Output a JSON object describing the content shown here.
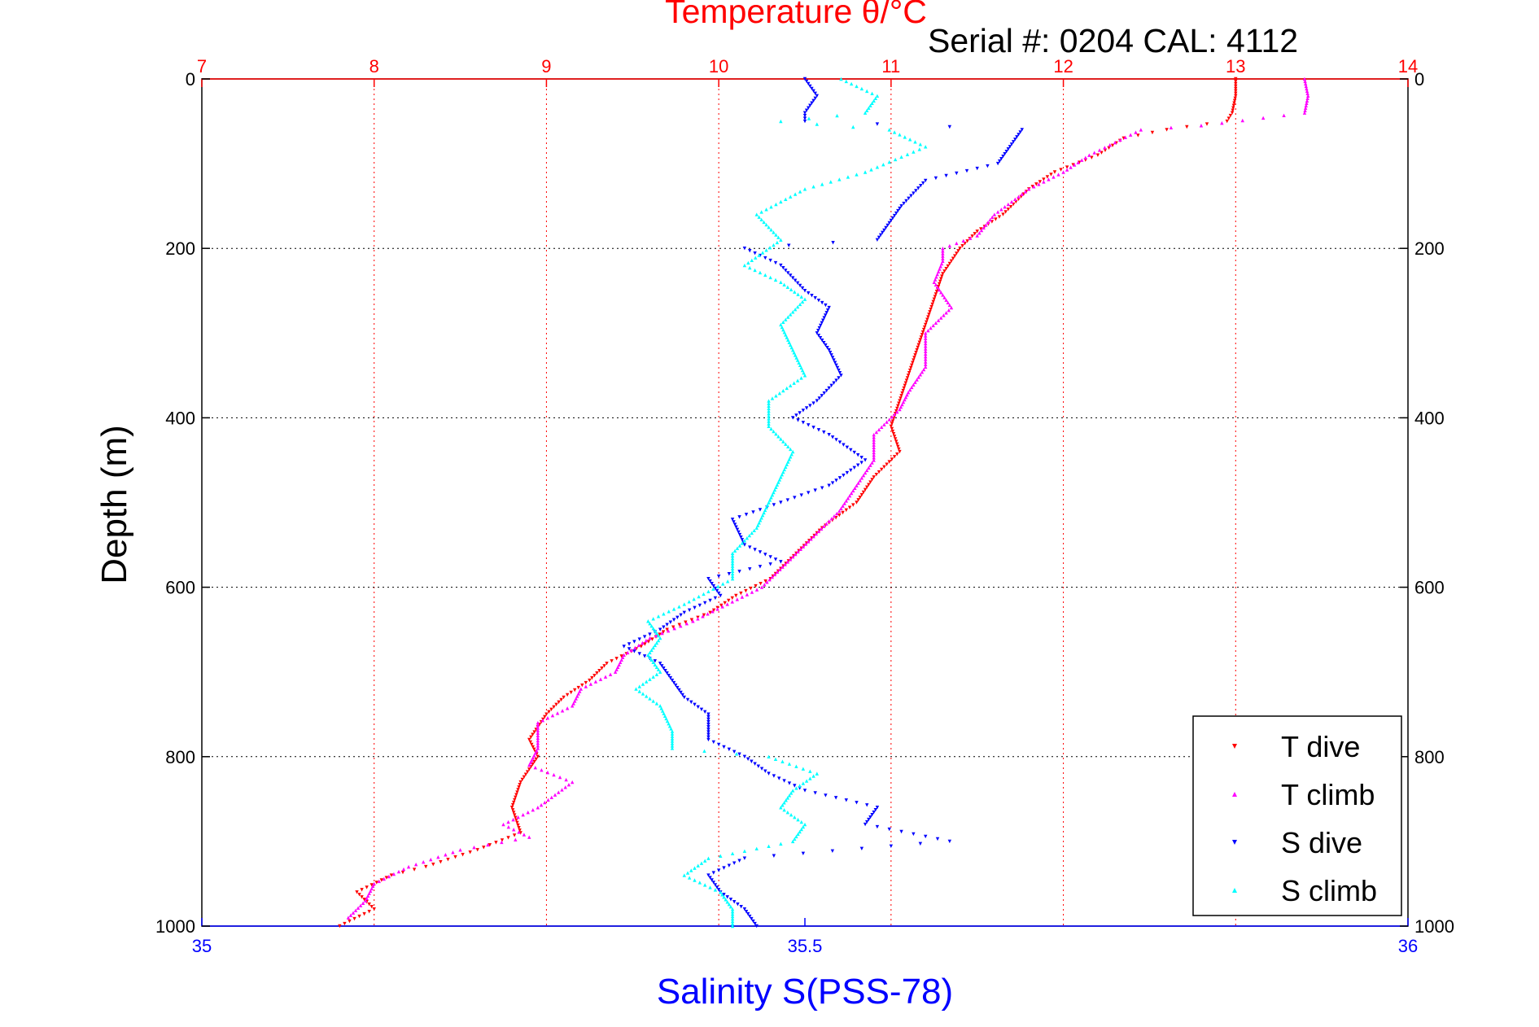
{
  "chart_data": {
    "type": "scatter",
    "title": "Temperature θ/°C",
    "subtitle": "Serial #: 0204  CAL: 4112",
    "ylabel": "Depth (m)",
    "xlabel": "Salinity S(PSS-78)",
    "y_reversed": true,
    "grid": true,
    "legend_position": "bottom-right",
    "temperature_axis": {
      "position": "top",
      "range": [
        7,
        14
      ],
      "ticks": [
        "7",
        "8",
        "9",
        "10",
        "11",
        "12",
        "13",
        "14"
      ],
      "color": "#ff0000"
    },
    "salinity_axis": {
      "position": "bottom",
      "range": [
        35,
        36
      ],
      "ticks": [
        "35",
        "35.5",
        "36"
      ],
      "color": "#0000ff"
    },
    "depth_axis": {
      "range": [
        0,
        1000
      ],
      "ticks": [
        "0",
        "200",
        "400",
        "600",
        "800",
        "1000"
      ]
    },
    "series": [
      {
        "name": "T dive",
        "axis": "temperature",
        "color": "#ff0000",
        "marker": "down-triangle",
        "points": [
          [
            13.0,
            0
          ],
          [
            13.0,
            20
          ],
          [
            12.98,
            40
          ],
          [
            12.95,
            50
          ],
          [
            12.6,
            60
          ],
          [
            12.35,
            70
          ],
          [
            12.2,
            90
          ],
          [
            11.95,
            110
          ],
          [
            11.8,
            130
          ],
          [
            11.65,
            160
          ],
          [
            11.5,
            180
          ],
          [
            11.4,
            200
          ],
          [
            11.3,
            230
          ],
          [
            11.25,
            260
          ],
          [
            11.2,
            290
          ],
          [
            11.15,
            320
          ],
          [
            11.1,
            350
          ],
          [
            11.05,
            380
          ],
          [
            11.0,
            410
          ],
          [
            11.05,
            440
          ],
          [
            10.9,
            470
          ],
          [
            10.8,
            500
          ],
          [
            10.6,
            530
          ],
          [
            10.45,
            560
          ],
          [
            10.3,
            590
          ],
          [
            10.1,
            610
          ],
          [
            9.95,
            630
          ],
          [
            9.7,
            650
          ],
          [
            9.55,
            670
          ],
          [
            9.35,
            690
          ],
          [
            9.25,
            710
          ],
          [
            9.1,
            730
          ],
          [
            9.0,
            750
          ],
          [
            8.9,
            780
          ],
          [
            8.95,
            800
          ],
          [
            8.85,
            830
          ],
          [
            8.8,
            860
          ],
          [
            8.85,
            890
          ],
          [
            8.6,
            910
          ],
          [
            8.3,
            930
          ],
          [
            8.1,
            940
          ],
          [
            7.9,
            960
          ],
          [
            8.0,
            980
          ],
          [
            7.8,
            1000
          ]
        ]
      },
      {
        "name": "T climb",
        "axis": "temperature",
        "color": "#ff00ff",
        "marker": "up-triangle",
        "points": [
          [
            13.4,
            0
          ],
          [
            13.42,
            20
          ],
          [
            13.4,
            40
          ],
          [
            12.8,
            55
          ],
          [
            12.45,
            60
          ],
          [
            12.3,
            75
          ],
          [
            12.15,
            90
          ],
          [
            12.0,
            110
          ],
          [
            11.8,
            130
          ],
          [
            11.6,
            160
          ],
          [
            11.5,
            185
          ],
          [
            11.3,
            200
          ],
          [
            11.3,
            215
          ],
          [
            11.25,
            240
          ],
          [
            11.35,
            270
          ],
          [
            11.2,
            300
          ],
          [
            11.2,
            340
          ],
          [
            11.1,
            370
          ],
          [
            11.05,
            390
          ],
          [
            10.9,
            420
          ],
          [
            10.9,
            450
          ],
          [
            10.8,
            480
          ],
          [
            10.7,
            510
          ],
          [
            10.55,
            540
          ],
          [
            10.4,
            570
          ],
          [
            10.25,
            600
          ],
          [
            10.05,
            620
          ],
          [
            9.85,
            640
          ],
          [
            9.6,
            660
          ],
          [
            9.45,
            680
          ],
          [
            9.4,
            700
          ],
          [
            9.2,
            720
          ],
          [
            9.15,
            740
          ],
          [
            8.95,
            760
          ],
          [
            8.95,
            790
          ],
          [
            8.9,
            810
          ],
          [
            9.15,
            830
          ],
          [
            8.95,
            860
          ],
          [
            8.75,
            880
          ],
          [
            8.9,
            895
          ],
          [
            8.5,
            910
          ],
          [
            8.2,
            930
          ],
          [
            8.0,
            950
          ],
          [
            7.95,
            970
          ],
          [
            7.85,
            990
          ]
        ]
      },
      {
        "name": "S dive",
        "axis": "salinity",
        "color": "#0000ff",
        "marker": "down-triangle",
        "points": [
          [
            35.5,
            0
          ],
          [
            35.51,
            20
          ],
          [
            35.5,
            40
          ],
          [
            35.5,
            50
          ],
          [
            35.68,
            60
          ],
          [
            35.67,
            80
          ],
          [
            35.66,
            100
          ],
          [
            35.6,
            120
          ],
          [
            35.58,
            150
          ],
          [
            35.57,
            170
          ],
          [
            35.56,
            190
          ],
          [
            35.45,
            200
          ],
          [
            35.48,
            220
          ],
          [
            35.5,
            250
          ],
          [
            35.52,
            270
          ],
          [
            35.51,
            300
          ],
          [
            35.52,
            320
          ],
          [
            35.53,
            350
          ],
          [
            35.51,
            380
          ],
          [
            35.49,
            400
          ],
          [
            35.52,
            420
          ],
          [
            35.55,
            450
          ],
          [
            35.52,
            480
          ],
          [
            35.48,
            500
          ],
          [
            35.44,
            520
          ],
          [
            35.45,
            550
          ],
          [
            35.48,
            570
          ],
          [
            35.42,
            590
          ],
          [
            35.43,
            610
          ],
          [
            35.4,
            630
          ],
          [
            35.38,
            650
          ],
          [
            35.35,
            670
          ],
          [
            35.38,
            690
          ],
          [
            35.39,
            710
          ],
          [
            35.4,
            730
          ],
          [
            35.42,
            750
          ],
          [
            35.42,
            780
          ],
          [
            35.45,
            800
          ],
          [
            35.47,
            820
          ],
          [
            35.5,
            840
          ],
          [
            35.56,
            860
          ],
          [
            35.55,
            880
          ],
          [
            35.62,
            900
          ],
          [
            35.45,
            920
          ],
          [
            35.42,
            940
          ],
          [
            35.43,
            960
          ],
          [
            35.45,
            980
          ],
          [
            35.46,
            1000
          ]
        ]
      },
      {
        "name": "S climb",
        "axis": "salinity",
        "color": "#00ffff",
        "marker": "up-triangle",
        "points": [
          [
            35.53,
            0
          ],
          [
            35.56,
            20
          ],
          [
            35.55,
            40
          ],
          [
            35.48,
            50
          ],
          [
            35.57,
            60
          ],
          [
            35.6,
            80
          ],
          [
            35.55,
            110
          ],
          [
            35.5,
            130
          ],
          [
            35.46,
            160
          ],
          [
            35.48,
            190
          ],
          [
            35.45,
            220
          ],
          [
            35.48,
            240
          ],
          [
            35.5,
            260
          ],
          [
            35.48,
            290
          ],
          [
            35.49,
            320
          ],
          [
            35.5,
            350
          ],
          [
            35.47,
            380
          ],
          [
            35.47,
            410
          ],
          [
            35.49,
            440
          ],
          [
            35.48,
            470
          ],
          [
            35.47,
            500
          ],
          [
            35.46,
            530
          ],
          [
            35.44,
            560
          ],
          [
            35.44,
            590
          ],
          [
            35.4,
            620
          ],
          [
            35.37,
            640
          ],
          [
            35.38,
            660
          ],
          [
            35.37,
            680
          ],
          [
            35.38,
            700
          ],
          [
            35.36,
            720
          ],
          [
            35.38,
            740
          ],
          [
            35.39,
            770
          ],
          [
            35.39,
            790
          ],
          [
            35.47,
            800
          ],
          [
            35.51,
            820
          ],
          [
            35.49,
            840
          ],
          [
            35.48,
            860
          ],
          [
            35.5,
            880
          ],
          [
            35.49,
            900
          ],
          [
            35.42,
            920
          ],
          [
            35.4,
            940
          ],
          [
            35.43,
            960
          ],
          [
            35.44,
            980
          ],
          [
            35.44,
            1000
          ]
        ]
      }
    ]
  }
}
